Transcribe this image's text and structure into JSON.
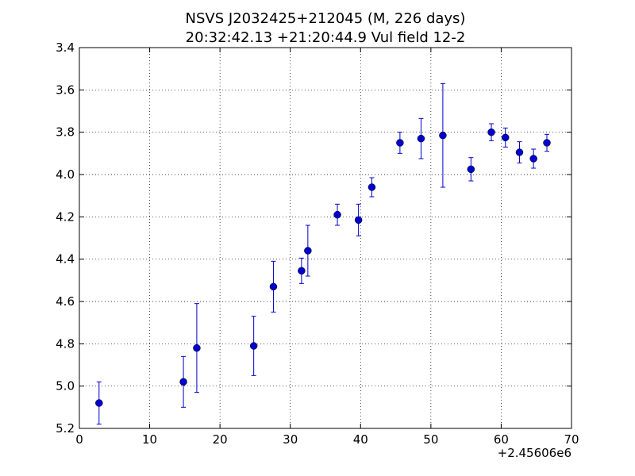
{
  "chart_data": {
    "type": "scatter",
    "title_lines": [
      "NSVS J2032425+212045 (M, 226 days)",
      "20:32:42.13 +21:20:44.9 Vul field 12-2"
    ],
    "xlabel": "",
    "ylabel": "",
    "x_offset_label": "+2.45606e6",
    "xlim": [
      0,
      70
    ],
    "ylim": [
      3.4,
      5.2
    ],
    "y_inverted": true,
    "grid": true,
    "x_ticks": [
      0,
      10,
      20,
      30,
      40,
      50,
      60,
      70
    ],
    "x_tick_labels": [
      "0",
      "10",
      "20",
      "30",
      "40",
      "50",
      "60",
      "70"
    ],
    "y_ticks": [
      3.4,
      3.6,
      3.8,
      4.0,
      4.2,
      4.4,
      4.6,
      4.8,
      5.0,
      5.2
    ],
    "y_tick_labels": [
      "3.4",
      "3.6",
      "3.8",
      "4.0",
      "4.2",
      "4.4",
      "4.6",
      "4.8",
      "5.0",
      "5.2"
    ],
    "series": [
      {
        "color": "#0000cc",
        "points": [
          {
            "x": 2.8,
            "y": 5.08,
            "err": 0.1
          },
          {
            "x": 14.8,
            "y": 4.98,
            "err": 0.12
          },
          {
            "x": 16.7,
            "y": 4.82,
            "err": 0.21
          },
          {
            "x": 24.8,
            "y": 4.81,
            "err": 0.14
          },
          {
            "x": 27.6,
            "y": 4.53,
            "err": 0.12
          },
          {
            "x": 31.6,
            "y": 4.455,
            "err": 0.06
          },
          {
            "x": 32.5,
            "y": 4.36,
            "err": 0.12
          },
          {
            "x": 36.7,
            "y": 4.19,
            "err": 0.05
          },
          {
            "x": 39.7,
            "y": 4.215,
            "err": 0.075
          },
          {
            "x": 41.6,
            "y": 4.06,
            "err": 0.045
          },
          {
            "x": 45.6,
            "y": 3.85,
            "err": 0.05
          },
          {
            "x": 48.6,
            "y": 3.83,
            "err": 0.095
          },
          {
            "x": 51.7,
            "y": 3.815,
            "err": 0.245
          },
          {
            "x": 55.7,
            "y": 3.975,
            "err": 0.055
          },
          {
            "x": 58.6,
            "y": 3.8,
            "err": 0.04
          },
          {
            "x": 60.6,
            "y": 3.825,
            "err": 0.045
          },
          {
            "x": 62.6,
            "y": 3.895,
            "err": 0.05
          },
          {
            "x": 64.6,
            "y": 3.925,
            "err": 0.045
          },
          {
            "x": 66.5,
            "y": 3.85,
            "err": 0.04
          }
        ]
      }
    ]
  }
}
